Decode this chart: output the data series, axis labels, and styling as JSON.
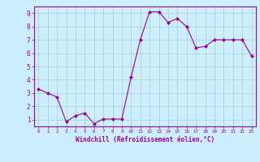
{
  "x": [
    0,
    1,
    2,
    3,
    4,
    5,
    6,
    7,
    8,
    9,
    10,
    11,
    12,
    13,
    14,
    15,
    16,
    17,
    18,
    19,
    20,
    21,
    22,
    23
  ],
  "y": [
    3.3,
    3.0,
    2.7,
    0.85,
    1.3,
    1.5,
    0.7,
    1.05,
    1.05,
    1.05,
    4.2,
    7.0,
    9.1,
    9.1,
    8.3,
    8.6,
    8.0,
    6.4,
    6.5,
    7.0,
    7.0,
    7.0,
    7.0,
    5.8
  ],
  "line_color": "#990099",
  "marker": "D",
  "marker_size": 2,
  "bg_color": "#cceeff",
  "grid_color": "#aacccc",
  "xlabel": "Windchill (Refroidissement éolien,°C)",
  "xlabel_color": "#990099",
  "tick_color": "#990099",
  "ylim": [
    0.5,
    9.5
  ],
  "xlim": [
    -0.5,
    23.5
  ],
  "yticks": [
    1,
    2,
    3,
    4,
    5,
    6,
    7,
    8,
    9
  ],
  "xticks": [
    0,
    1,
    2,
    3,
    4,
    5,
    6,
    7,
    8,
    9,
    10,
    11,
    12,
    13,
    14,
    15,
    16,
    17,
    18,
    19,
    20,
    21,
    22,
    23
  ],
  "spine_color": "#990099",
  "fig_bg_color": "#cceeff"
}
